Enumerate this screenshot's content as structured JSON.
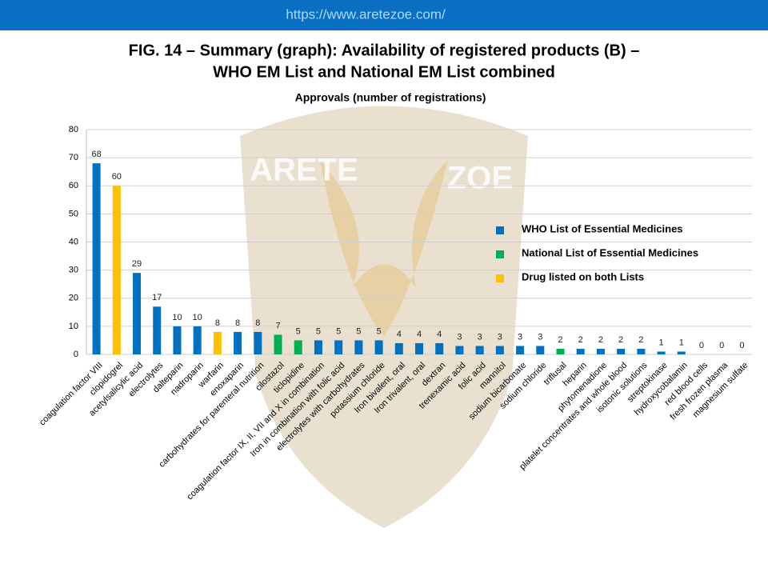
{
  "header": {
    "url": "https://www.aretezoe.com/"
  },
  "watermark": [
    "ARETE",
    "ZOE"
  ],
  "chart_data": {
    "type": "bar",
    "title": [
      "FIG. 14 – Summary (graph): Availability of registered products (B) –",
      "WHO EM List and National EM List combined"
    ],
    "subtitle": "Approvals (number of registrations)",
    "categories": [
      "coagulation factor VIII",
      "clopidogrel",
      "acetylsalicylic acid",
      "electrolytes",
      "dalteparin",
      "nadroparin",
      "warfarin",
      "enoxaparin",
      "carbohydrates for parenteral nutrition",
      "cilostazol",
      "ticlopidine",
      "coagulation factor IX, II, VII and X in combination",
      "Iron in combination with folic acid",
      "electrolytes with carbohydrates",
      "potassium chloride",
      "Iron bivalent, oral",
      "Iron trivalent, oral",
      "dextran",
      "trenexamic acid",
      "folic acid",
      "mannitol",
      "sodium bicarbonate",
      "sodium chloride",
      "triflusal",
      "heparin",
      "phytomenadione",
      "platelet concentrates and whole blood",
      "isotonic solutions",
      "streptokinase",
      "hydroxycobalamin",
      "red blood cells",
      "fresh frozen plasma",
      "magnesium sulfate"
    ],
    "series": [
      {
        "name": "WHO List of Essential Medicines",
        "color": "#0070c0",
        "values": [
          68,
          null,
          29,
          17,
          10,
          10,
          null,
          8,
          8,
          null,
          null,
          5,
          5,
          5,
          5,
          4,
          4,
          4,
          3,
          3,
          3,
          3,
          3,
          null,
          2,
          2,
          2,
          2,
          1,
          1,
          0,
          0,
          0
        ]
      },
      {
        "name": "National List of Essential Medicines",
        "color": "#00b050",
        "values": [
          null,
          null,
          null,
          null,
          null,
          null,
          null,
          null,
          null,
          7,
          5,
          null,
          null,
          null,
          null,
          null,
          null,
          null,
          null,
          null,
          null,
          null,
          null,
          2,
          null,
          null,
          null,
          null,
          null,
          null,
          null,
          null,
          null
        ]
      },
      {
        "name": "Drug listed on both Lists",
        "color": "#ffc000",
        "values": [
          null,
          60,
          null,
          null,
          null,
          null,
          8,
          null,
          null,
          null,
          null,
          null,
          null,
          null,
          null,
          null,
          null,
          null,
          null,
          null,
          null,
          null,
          null,
          null,
          null,
          null,
          null,
          null,
          null,
          null,
          null,
          null,
          null
        ]
      }
    ],
    "ylim": [
      0,
      80
    ],
    "yticks": [
      0,
      10,
      20,
      30,
      40,
      50,
      60,
      70,
      80
    ],
    "grid": true,
    "legend": "right"
  }
}
